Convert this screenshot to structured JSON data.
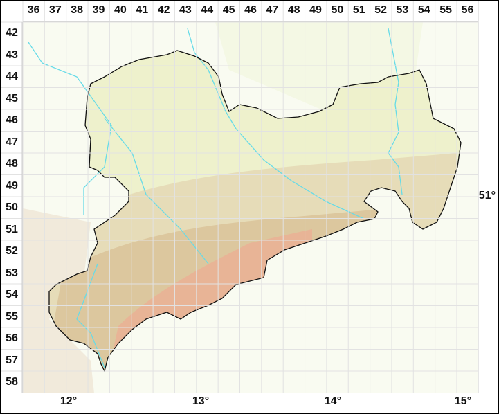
{
  "grid": {
    "columns": [
      "36",
      "37",
      "38",
      "39",
      "40",
      "41",
      "42",
      "43",
      "44",
      "45",
      "46",
      "47",
      "48",
      "49",
      "50",
      "51",
      "52",
      "53",
      "54",
      "55",
      "56"
    ],
    "rows": [
      "42",
      "43",
      "44",
      "45",
      "46",
      "47",
      "48",
      "49",
      "50",
      "51",
      "52",
      "53",
      "54",
      "55",
      "56",
      "57",
      "58"
    ]
  },
  "longitude_labels": [
    "12°",
    "13°",
    "14°",
    "15°"
  ],
  "latitude_labels": [
    "51°"
  ],
  "colors": {
    "region_fill": "#eef1cc",
    "outside_fill": "#f4f8e4",
    "upland": "#e6dcb8",
    "mountain": "#e8b496",
    "river": "#66dbe8",
    "border": "#111111",
    "grid": "#e4e4e4"
  }
}
